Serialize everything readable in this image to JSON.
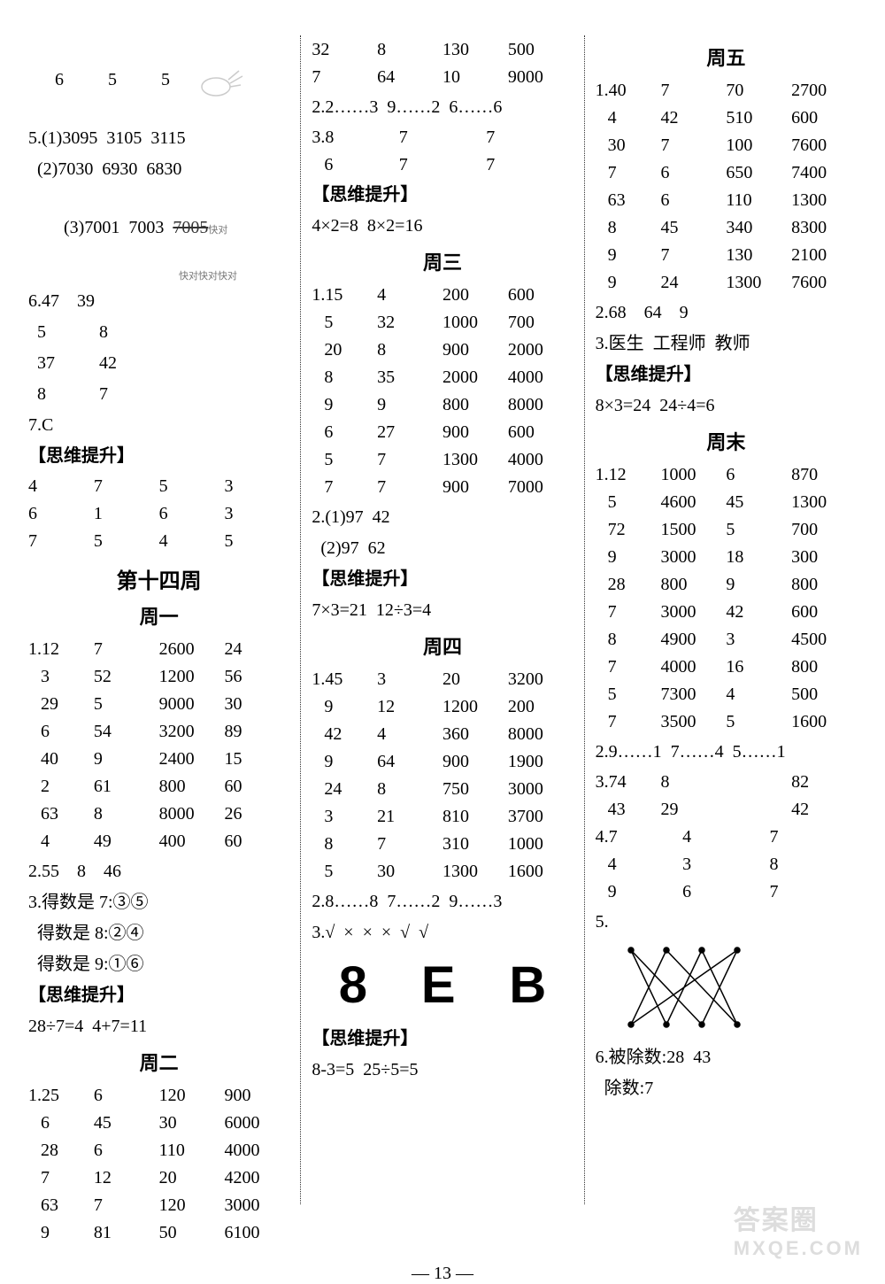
{
  "footer": "— 13 —",
  "watermark": {
    "cn": "答案圈",
    "en": "MXQE.COM"
  },
  "col1": {
    "open_rows": [
      [
        "6",
        "5",
        "5"
      ]
    ],
    "q5": {
      "l1": "5.(1)3095  3105  3115",
      "l2": "  (2)7030  6930  6830",
      "l3_a": "  (3)7001  7003  ",
      "l3_b": "7005",
      "l3_c": "快对",
      "l3_d": "快对快对快对"
    },
    "q6_head": "6.47    39",
    "q6_rows": [
      [
        "5",
        "8"
      ],
      [
        "37",
        "42"
      ],
      [
        "8",
        "7"
      ]
    ],
    "q7": "7.C",
    "think": "【思维提升】",
    "think_rows": [
      [
        "4",
        "7",
        "5",
        "3"
      ],
      [
        "6",
        "1",
        "6",
        "3"
      ],
      [
        "7",
        "5",
        "4",
        "5"
      ]
    ],
    "week": "第十四周",
    "day1": "周一",
    "d1_q1": [
      [
        "1.12",
        "7",
        "2600",
        "24"
      ],
      [
        "3",
        "52",
        "1200",
        "56"
      ],
      [
        "29",
        "5",
        "9000",
        "30"
      ],
      [
        "6",
        "54",
        "3200",
        "89"
      ],
      [
        "40",
        "9",
        "2400",
        "15"
      ],
      [
        "2",
        "61",
        "800",
        "60"
      ],
      [
        "63",
        "8",
        "8000",
        "26"
      ],
      [
        "4",
        "49",
        "400",
        "60"
      ]
    ],
    "d1_q2": "2.55    8    46",
    "d1_q3a": "3.得数是 7:③⑤",
    "d1_q3b": "  得数是 8:②④",
    "d1_q3c": "  得数是 9:①⑥",
    "d1_think": "【思维提升】",
    "d1_think_line": "28÷7=4  4+7=11",
    "day2": "周二",
    "d2_q1": [
      [
        "1.25",
        "6",
        "120",
        "900"
      ],
      [
        "6",
        "45",
        "30",
        "6000"
      ],
      [
        "28",
        "6",
        "110",
        "4000"
      ],
      [
        "7",
        "12",
        "20",
        "4200"
      ],
      [
        "63",
        "7",
        "120",
        "3000"
      ],
      [
        "9",
        "81",
        "50",
        "6100"
      ]
    ]
  },
  "col2": {
    "cont": [
      [
        "32",
        "8",
        "130",
        "500"
      ],
      [
        "7",
        "64",
        "10",
        "9000"
      ]
    ],
    "q2": "2.2……3  9……2  6……6",
    "q3_head": [
      "3.8",
      "7",
      "7"
    ],
    "q3_row2": [
      "6",
      "7",
      "7"
    ],
    "think": "【思维提升】",
    "think_line": "4×2=8  8×2=16",
    "day3": "周三",
    "d3_q1": [
      [
        "1.15",
        "4",
        "200",
        "600"
      ],
      [
        "5",
        "32",
        "1000",
        "700"
      ],
      [
        "20",
        "8",
        "900",
        "2000"
      ],
      [
        "8",
        "35",
        "2000",
        "4000"
      ],
      [
        "9",
        "9",
        "800",
        "8000"
      ],
      [
        "6",
        "27",
        "900",
        "600"
      ],
      [
        "5",
        "7",
        "1300",
        "4000"
      ],
      [
        "7",
        "7",
        "900",
        "7000"
      ]
    ],
    "d3_q2a": "2.(1)97  42",
    "d3_q2b": "  (2)97  62",
    "d3_think": "【思维提升】",
    "d3_think_line": "7×3=21  12÷3=4",
    "day4": "周四",
    "d4_q1": [
      [
        "1.45",
        "3",
        "20",
        "3200"
      ],
      [
        "9",
        "12",
        "1200",
        "200"
      ],
      [
        "42",
        "4",
        "360",
        "8000"
      ],
      [
        "9",
        "64",
        "900",
        "1900"
      ],
      [
        "24",
        "8",
        "750",
        "3000"
      ],
      [
        "3",
        "21",
        "810",
        "3700"
      ],
      [
        "8",
        "7",
        "310",
        "1000"
      ],
      [
        "5",
        "30",
        "1300",
        "1600"
      ]
    ],
    "d4_q2": "2.8……8  7……2  9……3",
    "d4_q3": "3.√  ×  ×  ×  √  √",
    "letters": [
      "8",
      "E",
      "B"
    ],
    "d4_think": "【思维提升】",
    "d4_think_line": "8-3=5  25÷5=5"
  },
  "col3": {
    "day5": "周五",
    "d5_q1": [
      [
        "1.40",
        "7",
        "70",
        "2700"
      ],
      [
        "4",
        "42",
        "510",
        "600"
      ],
      [
        "30",
        "7",
        "100",
        "7600"
      ],
      [
        "7",
        "6",
        "650",
        "7400"
      ],
      [
        "63",
        "6",
        "110",
        "1300"
      ],
      [
        "8",
        "45",
        "340",
        "8300"
      ],
      [
        "9",
        "7",
        "130",
        "2100"
      ],
      [
        "9",
        "24",
        "1300",
        "7600"
      ]
    ],
    "d5_q2": "2.68    64    9",
    "d5_q3": "3.医生  工程师  教师",
    "d5_think": "【思维提升】",
    "d5_think_line": "8×3=24  24÷4=6",
    "weekend": "周末",
    "we_q1": [
      [
        "1.12",
        "1000",
        "6",
        "870"
      ],
      [
        "5",
        "4600",
        "45",
        "1300"
      ],
      [
        "72",
        "1500",
        "5",
        "700"
      ],
      [
        "9",
        "3000",
        "18",
        "300"
      ],
      [
        "28",
        "800",
        "9",
        "800"
      ],
      [
        "7",
        "3000",
        "42",
        "600"
      ],
      [
        "8",
        "4900",
        "3",
        "4500"
      ],
      [
        "7",
        "4000",
        "16",
        "800"
      ],
      [
        "5",
        "7300",
        "4",
        "500"
      ],
      [
        "7",
        "3500",
        "5",
        "1600"
      ]
    ],
    "we_q2": "2.9……1  7……4  5……1",
    "we_q3": [
      "3.74",
      "8",
      "",
      "82"
    ],
    "we_q3b": [
      "43",
      "29",
      "",
      "42"
    ],
    "we_q4": [
      [
        "4.7",
        "4",
        "7"
      ],
      [
        "4",
        "3",
        "8"
      ],
      [
        "9",
        "6",
        "7"
      ]
    ],
    "we_q5": "5.",
    "we_q6a": "6.被除数:28  43",
    "we_q6b": "  除数:7"
  }
}
